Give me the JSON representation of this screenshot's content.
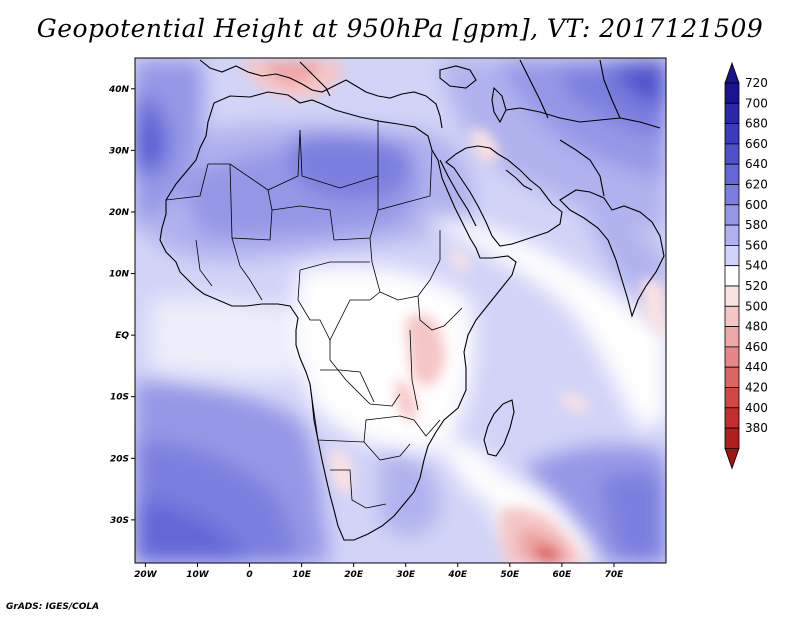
{
  "title": "Geopotential Height at 950hPa [gpm], VT: 2017121509",
  "credit": "GrADS: IGES/COLA",
  "map": {
    "variable": "Geopotential Height",
    "level": "950hPa",
    "units": "gpm",
    "valid_time": "2017121509",
    "lon_range": [
      -22,
      80
    ],
    "lat_range": [
      -37,
      45
    ],
    "lon_ticks": [
      {
        "value": -20,
        "label": "20W"
      },
      {
        "value": -10,
        "label": "10W"
      },
      {
        "value": 0,
        "label": "0"
      },
      {
        "value": 10,
        "label": "10E"
      },
      {
        "value": 20,
        "label": "20E"
      },
      {
        "value": 30,
        "label": "30E"
      },
      {
        "value": 40,
        "label": "40E"
      },
      {
        "value": 50,
        "label": "50E"
      },
      {
        "value": 60,
        "label": "60E"
      },
      {
        "value": 70,
        "label": "70E"
      }
    ],
    "lat_ticks": [
      {
        "value": 40,
        "label": "40N"
      },
      {
        "value": 30,
        "label": "30N"
      },
      {
        "value": 20,
        "label": "20N"
      },
      {
        "value": 10,
        "label": "10N"
      },
      {
        "value": 0,
        "label": "EQ"
      },
      {
        "value": -10,
        "label": "10S"
      },
      {
        "value": -20,
        "label": "20S"
      },
      {
        "value": -30,
        "label": "30S"
      }
    ]
  },
  "colorbar": {
    "levels": [
      {
        "label": "720",
        "color": "#1a148f"
      },
      {
        "label": "700",
        "color": "#2a28a8"
      },
      {
        "label": "680",
        "color": "#3b3cbc"
      },
      {
        "label": "660",
        "color": "#4e51cc"
      },
      {
        "label": "640",
        "color": "#6367d6"
      },
      {
        "label": "620",
        "color": "#7a7ede"
      },
      {
        "label": "600",
        "color": "#9497e6"
      },
      {
        "label": "580",
        "color": "#b0b2ee"
      },
      {
        "label": "560",
        "color": "#d2d4f7"
      },
      {
        "label": "540",
        "color": "#ffffff"
      },
      {
        "label": "520",
        "color": "#fbe2e2"
      },
      {
        "label": "500",
        "color": "#f6c6c6"
      },
      {
        "label": "480",
        "color": "#eea6a6"
      },
      {
        "label": "460",
        "color": "#e68686"
      },
      {
        "label": "440",
        "color": "#dd6464"
      },
      {
        "label": "420",
        "color": "#d34646"
      },
      {
        "label": "400",
        "color": "#c42d2d"
      },
      {
        "label": "380",
        "color": "#b01e1e"
      }
    ],
    "bottom_color": "#9e1414"
  }
}
